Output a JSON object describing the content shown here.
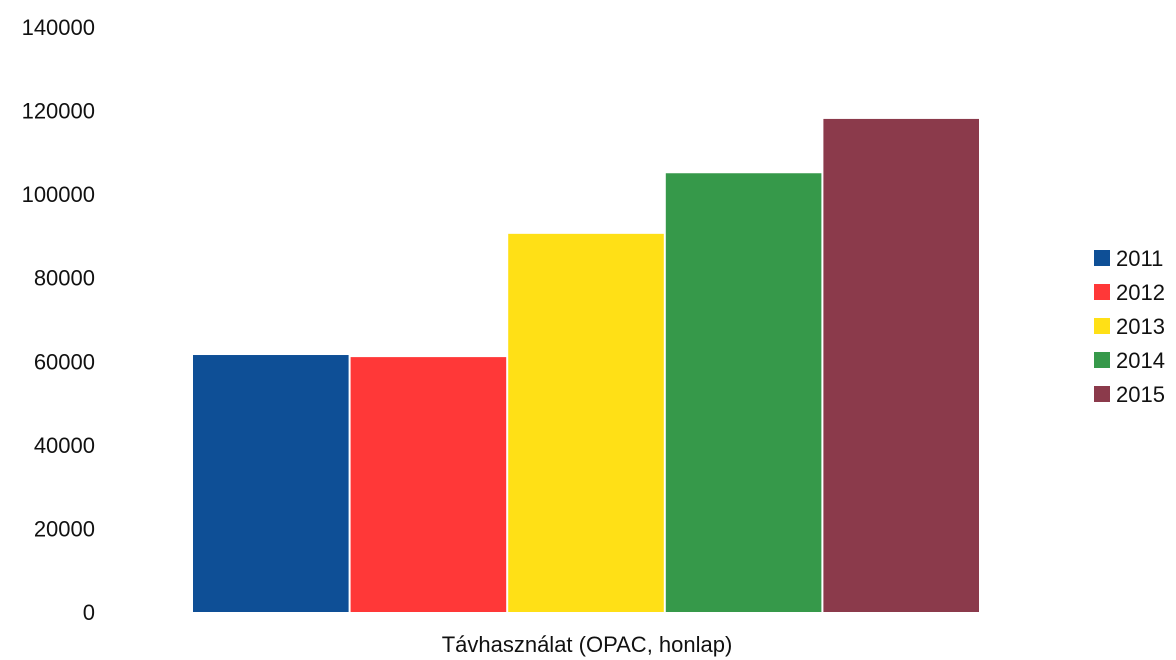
{
  "chart_data": {
    "type": "bar",
    "categories": [
      "Távhasználat (OPAC, honlap)"
    ],
    "series": [
      {
        "name": "2011",
        "values": [
          61500
        ],
        "color": "#0e4f96"
      },
      {
        "name": "2012",
        "values": [
          61000
        ],
        "color": "#ff3838"
      },
      {
        "name": "2013",
        "values": [
          90500
        ],
        "color": "#ffe016"
      },
      {
        "name": "2014",
        "values": [
          105000
        ],
        "color": "#36994a"
      },
      {
        "name": "2015",
        "values": [
          118000
        ],
        "color": "#8b3a4b"
      }
    ],
    "ylim": [
      0,
      140000
    ],
    "yticks": [
      "0",
      "20000",
      "40000",
      "60000",
      "80000",
      "100000",
      "120000",
      "140000"
    ],
    "grid": false,
    "legend_position": "right"
  }
}
